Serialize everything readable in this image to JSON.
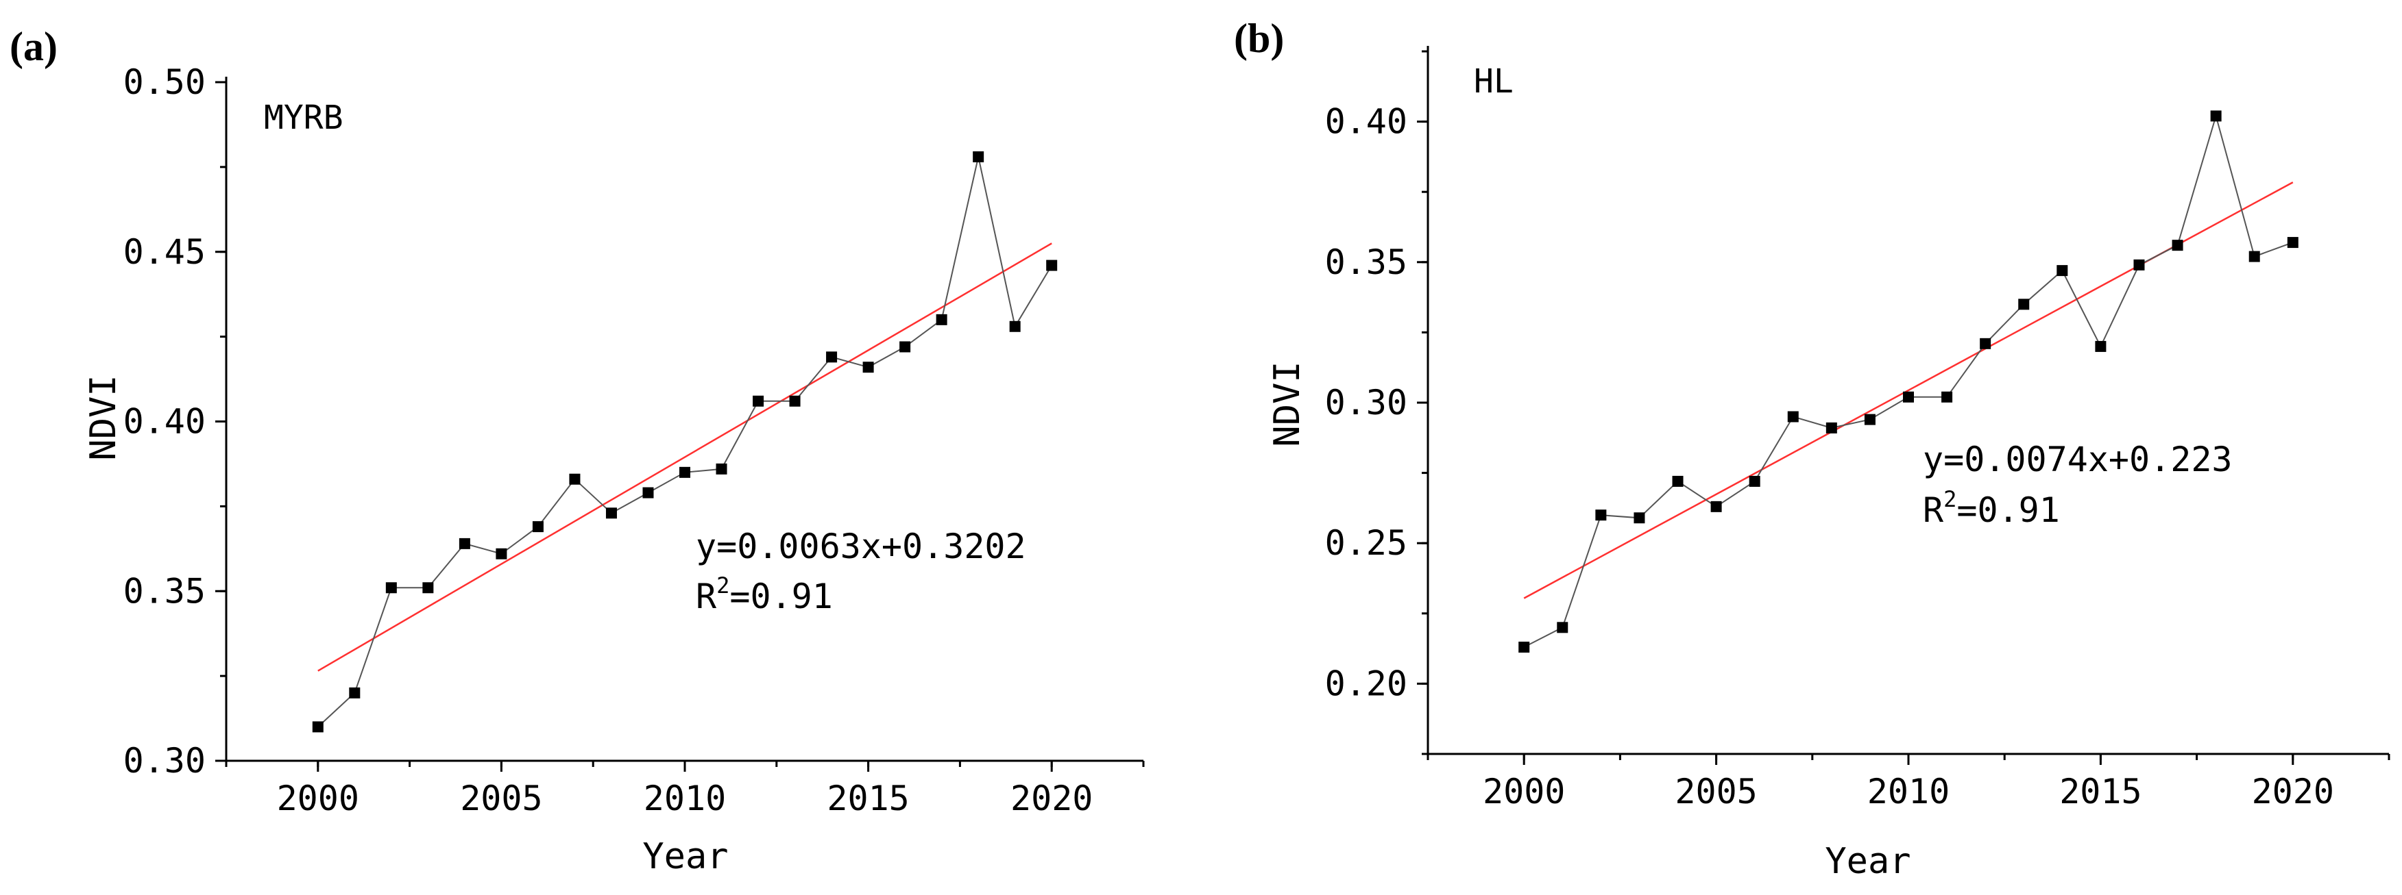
{
  "colors": {
    "points": "#000000",
    "connector": "#555555",
    "trend": "#ff3030"
  },
  "chart_data": [
    {
      "type": "line",
      "panel_label": "(a)",
      "region": "MYRB",
      "xlabel": "Year",
      "ylabel": "NDVI",
      "xlim": [
        1997.5,
        2022.5
      ],
      "ylim": [
        0.3,
        0.5
      ],
      "xticks": [
        2000,
        2005,
        2010,
        2015,
        2020
      ],
      "yticks": [
        0.3,
        0.35,
        0.4,
        0.45,
        0.5
      ],
      "ytick_labels": [
        "0.30",
        "0.35",
        "0.40",
        "0.45",
        "0.50"
      ],
      "x": [
        2000,
        2001,
        2002,
        2003,
        2004,
        2005,
        2006,
        2007,
        2008,
        2009,
        2010,
        2011,
        2012,
        2013,
        2014,
        2015,
        2016,
        2017,
        2018,
        2019,
        2020
      ],
      "values": [
        0.31,
        0.32,
        0.351,
        0.351,
        0.364,
        0.361,
        0.369,
        0.383,
        0.373,
        0.379,
        0.385,
        0.386,
        0.406,
        0.406,
        0.419,
        0.416,
        0.422,
        0.43,
        0.478,
        0.428,
        0.446
      ],
      "trend": {
        "slope": 0.0063,
        "intercept": 0.3202,
        "x_origin": 1999
      },
      "equation": "y=0.0063x+0.3202",
      "r2_prefix": "R",
      "r2_sup": "2",
      "r2_value": "=0.91"
    },
    {
      "type": "line",
      "panel_label": "(b)",
      "region": "HL",
      "xlabel": "Year",
      "ylabel": "NDVI",
      "xlim": [
        1997.5,
        2022.5
      ],
      "ylim": [
        0.175,
        0.425
      ],
      "xticks": [
        2000,
        2005,
        2010,
        2015,
        2020
      ],
      "yticks": [
        0.2,
        0.25,
        0.3,
        0.35,
        0.4
      ],
      "ytick_labels": [
        "0.20",
        "0.25",
        "0.30",
        "0.35",
        "0.40"
      ],
      "x": [
        2000,
        2001,
        2002,
        2003,
        2004,
        2005,
        2006,
        2007,
        2008,
        2009,
        2010,
        2011,
        2012,
        2013,
        2014,
        2015,
        2016,
        2017,
        2018,
        2019,
        2020
      ],
      "values": [
        0.213,
        0.22,
        0.26,
        0.259,
        0.272,
        0.263,
        0.272,
        0.295,
        0.291,
        0.294,
        0.302,
        0.302,
        0.321,
        0.335,
        0.347,
        0.32,
        0.349,
        0.356,
        0.402,
        0.352,
        0.357
      ],
      "trend": {
        "slope": 0.0074,
        "intercept": 0.223,
        "x_origin": 1999
      },
      "equation": "y=0.0074x+0.223",
      "r2_prefix": "R",
      "r2_sup": "2",
      "r2_value": "=0.91"
    }
  ]
}
